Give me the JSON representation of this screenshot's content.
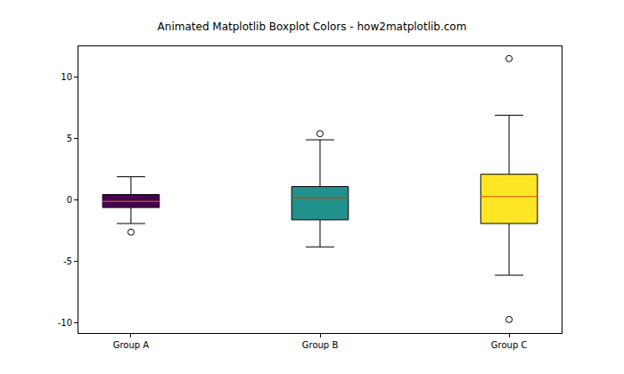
{
  "chart_data": {
    "type": "box",
    "title": "Animated Matplotlib Boxplot Colors - how2matplotlib.com",
    "categories": [
      "Group A",
      "Group B",
      "Group C"
    ],
    "series": [
      {
        "name": "Group A",
        "color": "#440154",
        "q1": -0.6,
        "median": -0.1,
        "q3": 0.45,
        "whisker_low": -1.9,
        "whisker_high": 1.9,
        "outliers": [
          -2.6
        ]
      },
      {
        "name": "Group B",
        "color": "#21918c",
        "q1": -1.6,
        "median": 0.2,
        "q3": 1.1,
        "whisker_low": -3.8,
        "whisker_high": 4.9,
        "outliers": [
          5.4
        ]
      },
      {
        "name": "Group C",
        "color": "#fde725",
        "q1": -1.9,
        "median": 0.3,
        "q3": 2.1,
        "whisker_low": -6.1,
        "whisker_high": 6.9,
        "outliers": [
          11.5,
          -9.7
        ]
      }
    ],
    "ylim": [
      -10.8,
      12.5
    ],
    "yticks": [
      -10,
      -5,
      0,
      5,
      10
    ],
    "grid": false
  }
}
